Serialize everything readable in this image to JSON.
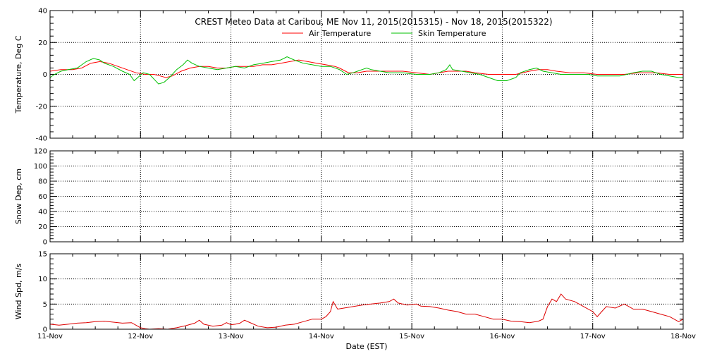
{
  "title": "CREST Meteo Data at Caribou, ME   Nov 11, 2015(2015315) - Nov 18, 2015(2015322)",
  "xlabel": "Date (EST)",
  "x_tick_labels": [
    "11-Nov",
    "12-Nov",
    "13-Nov",
    "14-Nov",
    "15-Nov",
    "16-Nov",
    "17-Nov",
    "18-Nov"
  ],
  "colors": {
    "air": "#ff0000",
    "skin": "#00c000",
    "wind": "#dd0000",
    "axes": "#000000"
  },
  "chart_data": [
    {
      "type": "line",
      "ylabel": "Temperature, Deg C",
      "ylim": [
        -40,
        40
      ],
      "yticks": [
        -40,
        -20,
        0,
        20,
        40
      ],
      "grid": true,
      "legend_placement": "top-center",
      "x_units": "days since 11-Nov",
      "series": [
        {
          "name": "Air Temperature",
          "color": "#ff0000",
          "points": [
            [
              0,
              2
            ],
            [
              0.12,
              3
            ],
            [
              0.25,
              3
            ],
            [
              0.35,
              4
            ],
            [
              0.45,
              7
            ],
            [
              0.55,
              8
            ],
            [
              0.65,
              7
            ],
            [
              0.75,
              5
            ],
            [
              0.85,
              3
            ],
            [
              0.95,
              1
            ],
            [
              1.05,
              0
            ],
            [
              1.15,
              0
            ],
            [
              1.22,
              -1
            ],
            [
              1.28,
              -2
            ],
            [
              1.35,
              -1
            ],
            [
              1.45,
              2
            ],
            [
              1.55,
              4
            ],
            [
              1.65,
              5
            ],
            [
              1.75,
              5
            ],
            [
              1.85,
              4
            ],
            [
              1.95,
              4
            ],
            [
              2.05,
              5
            ],
            [
              2.15,
              5
            ],
            [
              2.25,
              5
            ],
            [
              2.35,
              6
            ],
            [
              2.45,
              6
            ],
            [
              2.55,
              7
            ],
            [
              2.65,
              8
            ],
            [
              2.75,
              9
            ],
            [
              2.85,
              8
            ],
            [
              2.95,
              7
            ],
            [
              3.05,
              6
            ],
            [
              3.15,
              5
            ],
            [
              3.2,
              4
            ],
            [
              3.3,
              1
            ],
            [
              3.4,
              1
            ],
            [
              3.5,
              2
            ],
            [
              3.6,
              2
            ],
            [
              3.75,
              2
            ],
            [
              3.9,
              2
            ],
            [
              4.05,
              1
            ],
            [
              4.2,
              0
            ],
            [
              4.3,
              1
            ],
            [
              4.4,
              2
            ],
            [
              4.5,
              2
            ],
            [
              4.6,
              2
            ],
            [
              4.7,
              1
            ],
            [
              4.85,
              0
            ],
            [
              5.0,
              0
            ],
            [
              5.15,
              0
            ],
            [
              5.3,
              2
            ],
            [
              5.4,
              3
            ],
            [
              5.5,
              3
            ],
            [
              5.6,
              2
            ],
            [
              5.75,
              1
            ],
            [
              5.9,
              1
            ],
            [
              6.05,
              0
            ],
            [
              6.2,
              0
            ],
            [
              6.35,
              0
            ],
            [
              6.5,
              1
            ],
            [
              6.6,
              1
            ],
            [
              6.7,
              1
            ],
            [
              6.85,
              0
            ],
            [
              7.0,
              0
            ]
          ]
        },
        {
          "name": "Skin Temperature",
          "color": "#00c000",
          "points": [
            [
              0,
              -2
            ],
            [
              0.05,
              0
            ],
            [
              0.12,
              2
            ],
            [
              0.2,
              3
            ],
            [
              0.3,
              4
            ],
            [
              0.4,
              8
            ],
            [
              0.48,
              10
            ],
            [
              0.55,
              9
            ],
            [
              0.6,
              7
            ],
            [
              0.7,
              5
            ],
            [
              0.8,
              2
            ],
            [
              0.88,
              0
            ],
            [
              0.93,
              -4
            ],
            [
              0.97,
              -2
            ],
            [
              1.03,
              1
            ],
            [
              1.1,
              0
            ],
            [
              1.15,
              -3
            ],
            [
              1.2,
              -6
            ],
            [
              1.26,
              -5
            ],
            [
              1.32,
              -2
            ],
            [
              1.4,
              3
            ],
            [
              1.47,
              6
            ],
            [
              1.52,
              9
            ],
            [
              1.57,
              7
            ],
            [
              1.65,
              5
            ],
            [
              1.75,
              4
            ],
            [
              1.85,
              3
            ],
            [
              1.95,
              4
            ],
            [
              2.05,
              5
            ],
            [
              2.15,
              4
            ],
            [
              2.25,
              6
            ],
            [
              2.35,
              7
            ],
            [
              2.45,
              8
            ],
            [
              2.55,
              9
            ],
            [
              2.62,
              11
            ],
            [
              2.7,
              9
            ],
            [
              2.8,
              7
            ],
            [
              2.9,
              6
            ],
            [
              3.0,
              5
            ],
            [
              3.1,
              5
            ],
            [
              3.2,
              3
            ],
            [
              3.28,
              0
            ],
            [
              3.35,
              1
            ],
            [
              3.45,
              3
            ],
            [
              3.5,
              4
            ],
            [
              3.55,
              3
            ],
            [
              3.65,
              2
            ],
            [
              3.75,
              1
            ],
            [
              3.9,
              1
            ],
            [
              4.05,
              0
            ],
            [
              4.2,
              0
            ],
            [
              4.3,
              1
            ],
            [
              4.38,
              3
            ],
            [
              4.42,
              6
            ],
            [
              4.45,
              3
            ],
            [
              4.55,
              2
            ],
            [
              4.65,
              1
            ],
            [
              4.75,
              0
            ],
            [
              4.85,
              -2
            ],
            [
              4.95,
              -4
            ],
            [
              5.05,
              -4
            ],
            [
              5.15,
              -2
            ],
            [
              5.2,
              1
            ],
            [
              5.3,
              3
            ],
            [
              5.38,
              4
            ],
            [
              5.45,
              2
            ],
            [
              5.55,
              1
            ],
            [
              5.65,
              0
            ],
            [
              5.8,
              0
            ],
            [
              5.95,
              0
            ],
            [
              6.05,
              -1
            ],
            [
              6.15,
              -1
            ],
            [
              6.3,
              -1
            ],
            [
              6.45,
              1
            ],
            [
              6.55,
              2
            ],
            [
              6.65,
              2
            ],
            [
              6.75,
              0
            ],
            [
              6.85,
              -1
            ],
            [
              6.95,
              -2
            ],
            [
              7.0,
              -2
            ]
          ]
        }
      ]
    },
    {
      "type": "line",
      "ylabel": "Snow Dep, cm",
      "ylim": [
        0,
        120
      ],
      "yticks": [
        0,
        20,
        40,
        60,
        80,
        100,
        120
      ],
      "grid": true,
      "series": []
    },
    {
      "type": "line",
      "ylabel": "Wind Spd, m/s",
      "ylim": [
        0,
        15
      ],
      "yticks": [
        0,
        5,
        10,
        15
      ],
      "grid": true,
      "series": [
        {
          "color": "#dd0000",
          "points": [
            [
              0,
              1.0
            ],
            [
              0.1,
              0.8
            ],
            [
              0.2,
              1.0
            ],
            [
              0.3,
              1.2
            ],
            [
              0.4,
              1.3
            ],
            [
              0.5,
              1.5
            ],
            [
              0.6,
              1.6
            ],
            [
              0.7,
              1.4
            ],
            [
              0.8,
              1.2
            ],
            [
              0.9,
              1.3
            ],
            [
              0.95,
              0.8
            ],
            [
              1.0,
              0.3
            ],
            [
              1.05,
              0.1
            ],
            [
              1.1,
              0.0
            ],
            [
              1.2,
              0.1
            ],
            [
              1.3,
              0.0
            ],
            [
              1.4,
              0.3
            ],
            [
              1.5,
              0.7
            ],
            [
              1.6,
              1.2
            ],
            [
              1.65,
              1.8
            ],
            [
              1.7,
              1.0
            ],
            [
              1.8,
              0.6
            ],
            [
              1.9,
              0.8
            ],
            [
              1.95,
              1.3
            ],
            [
              2.0,
              0.9
            ],
            [
              2.05,
              1.0
            ],
            [
              2.1,
              1.2
            ],
            [
              2.15,
              1.8
            ],
            [
              2.2,
              1.4
            ],
            [
              2.3,
              0.6
            ],
            [
              2.4,
              0.3
            ],
            [
              2.5,
              0.4
            ],
            [
              2.6,
              0.8
            ],
            [
              2.7,
              1.0
            ],
            [
              2.8,
              1.5
            ],
            [
              2.9,
              2.0
            ],
            [
              3.0,
              2.0
            ],
            [
              3.05,
              2.5
            ],
            [
              3.1,
              3.5
            ],
            [
              3.13,
              5.5
            ],
            [
              3.18,
              4.0
            ],
            [
              3.25,
              4.2
            ],
            [
              3.35,
              4.5
            ],
            [
              3.45,
              4.8
            ],
            [
              3.55,
              5.0
            ],
            [
              3.65,
              5.2
            ],
            [
              3.75,
              5.5
            ],
            [
              3.8,
              6.0
            ],
            [
              3.85,
              5.2
            ],
            [
              3.95,
              4.8
            ],
            [
              4.05,
              5.0
            ],
            [
              4.1,
              4.6
            ],
            [
              4.2,
              4.5
            ],
            [
              4.3,
              4.2
            ],
            [
              4.4,
              3.8
            ],
            [
              4.5,
              3.5
            ],
            [
              4.6,
              3.0
            ],
            [
              4.7,
              3.0
            ],
            [
              4.8,
              2.5
            ],
            [
              4.9,
              2.0
            ],
            [
              5.0,
              2.0
            ],
            [
              5.1,
              1.6
            ],
            [
              5.2,
              1.5
            ],
            [
              5.3,
              1.3
            ],
            [
              5.4,
              1.6
            ],
            [
              5.45,
              2.0
            ],
            [
              5.5,
              4.5
            ],
            [
              5.55,
              6.0
            ],
            [
              5.6,
              5.5
            ],
            [
              5.65,
              7.0
            ],
            [
              5.7,
              6.0
            ],
            [
              5.8,
              5.5
            ],
            [
              5.9,
              4.5
            ],
            [
              6.0,
              3.5
            ],
            [
              6.05,
              2.5
            ],
            [
              6.1,
              3.5
            ],
            [
              6.15,
              4.5
            ],
            [
              6.25,
              4.2
            ],
            [
              6.35,
              5.0
            ],
            [
              6.45,
              4.0
            ],
            [
              6.55,
              4.0
            ],
            [
              6.65,
              3.5
            ],
            [
              6.75,
              3.0
            ],
            [
              6.85,
              2.5
            ],
            [
              6.9,
              2.0
            ],
            [
              6.95,
              1.5
            ],
            [
              7.0,
              2.0
            ]
          ]
        }
      ]
    }
  ]
}
